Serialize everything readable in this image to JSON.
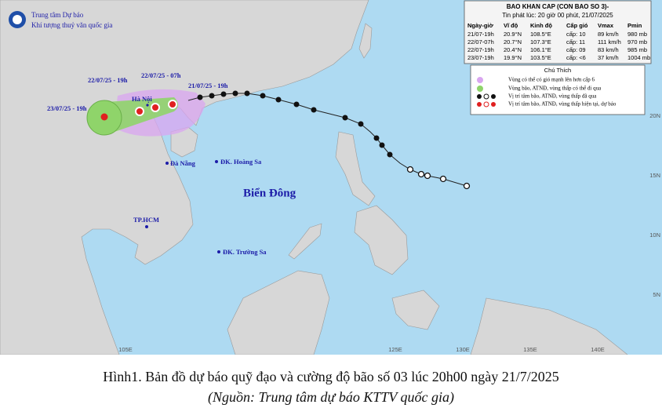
{
  "header": {
    "org_line1": "Trung tâm Dự báo",
    "org_line2": "Khí tượng thuỷ văn quốc gia"
  },
  "info_box": {
    "title": "BAO KHAN CAP (CON BAO SO 3)-",
    "issued": "Tin phát lúc: 20 giờ 00 phút, 21/07/2025",
    "columns": [
      "Ngày-giờ",
      "Vĩ độ",
      "Kinh độ",
      "Cấp gió",
      "Vmax",
      "Pmin"
    ],
    "rows": [
      [
        "21/07-19h",
        "20.9°N",
        "108.5°E",
        "cấp: 10",
        "89 km/h",
        "980 mb"
      ],
      [
        "22/07-07h",
        "20.7°N",
        "107.3°E",
        "cấp: 11",
        "111 km/h",
        "970 mb"
      ],
      [
        "22/07-19h",
        "20.4°N",
        "106.1°E",
        "cấp: 09",
        "83 km/h",
        "985 mb"
      ],
      [
        "23/07-19h",
        "19.9°N",
        "103.5°E",
        "cấp: <6",
        "37 km/h",
        "1004 mb"
      ]
    ]
  },
  "legend": {
    "title": "Chú Thích",
    "items": [
      "Vùng có thể có gió mạnh lên hơn cấp 6",
      "Vùng bão, ATNĐ, vùng thấp có thể đi qua",
      "Vị trí tâm bão, ATNĐ, vùng thấp đã qua",
      "Vị trí tâm bão, ATNĐ, vùng thấp hiện tại, dự báo"
    ]
  },
  "track_labels": [
    "22/07/25 - 19h",
    "22/07/25 - 07h",
    "21/07/25 - 19h",
    "23/07/25 - 19h"
  ],
  "places": [
    "Hà Nội",
    "Đà Nẵng",
    "ĐK. Hoàng Sa",
    "Biển Đông",
    "TP.HCM",
    "ĐK. Trường Sa"
  ],
  "grid_labels": {
    "latitudes": [
      "20N",
      "15N",
      "10N",
      "5N"
    ],
    "longitudes": [
      "105E",
      "125E",
      "130E",
      "135E",
      "140E"
    ]
  },
  "caption": {
    "title": "Hình1. Bản đồ dự báo quỹ đạo và cường độ bão số 03 lúc 20h00 ngày 21/7/2025",
    "source": "(Nguồn: Trung tâm dự báo KTTV quốc gia)"
  }
}
